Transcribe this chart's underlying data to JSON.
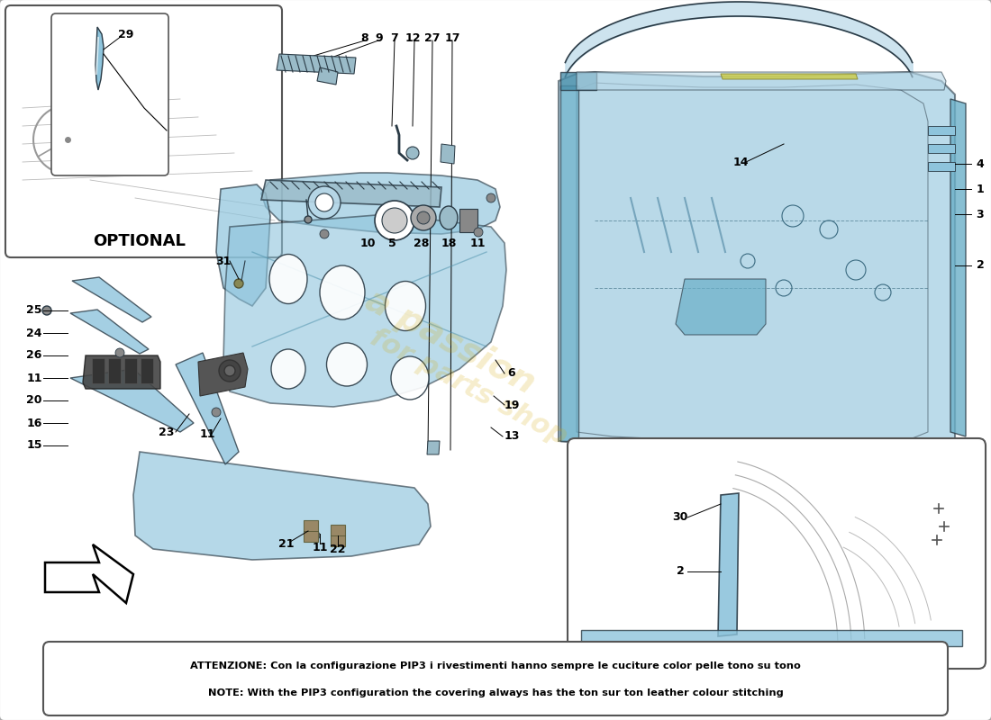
{
  "bg_color": "#ffffff",
  "blue": "#8EC4DC",
  "blue_mid": "#6AAFC8",
  "blue_dark": "#4A8FAA",
  "blue_light": "#B8D8E8",
  "line_col": "#2A3A45",
  "gray": "#888888",
  "note_line1": "ATTENZIONE: Con la configurazione PIP3 i rivestimenti hanno sempre le cuciture color pelle tono su tono",
  "note_line2": "NOTE: With the PIP3 configuration the covering always has the ton sur ton leather colour stitching",
  "optional_label": "OPTIONAL",
  "watermark1": "a passion",
  "watermark2": "for parts shop"
}
